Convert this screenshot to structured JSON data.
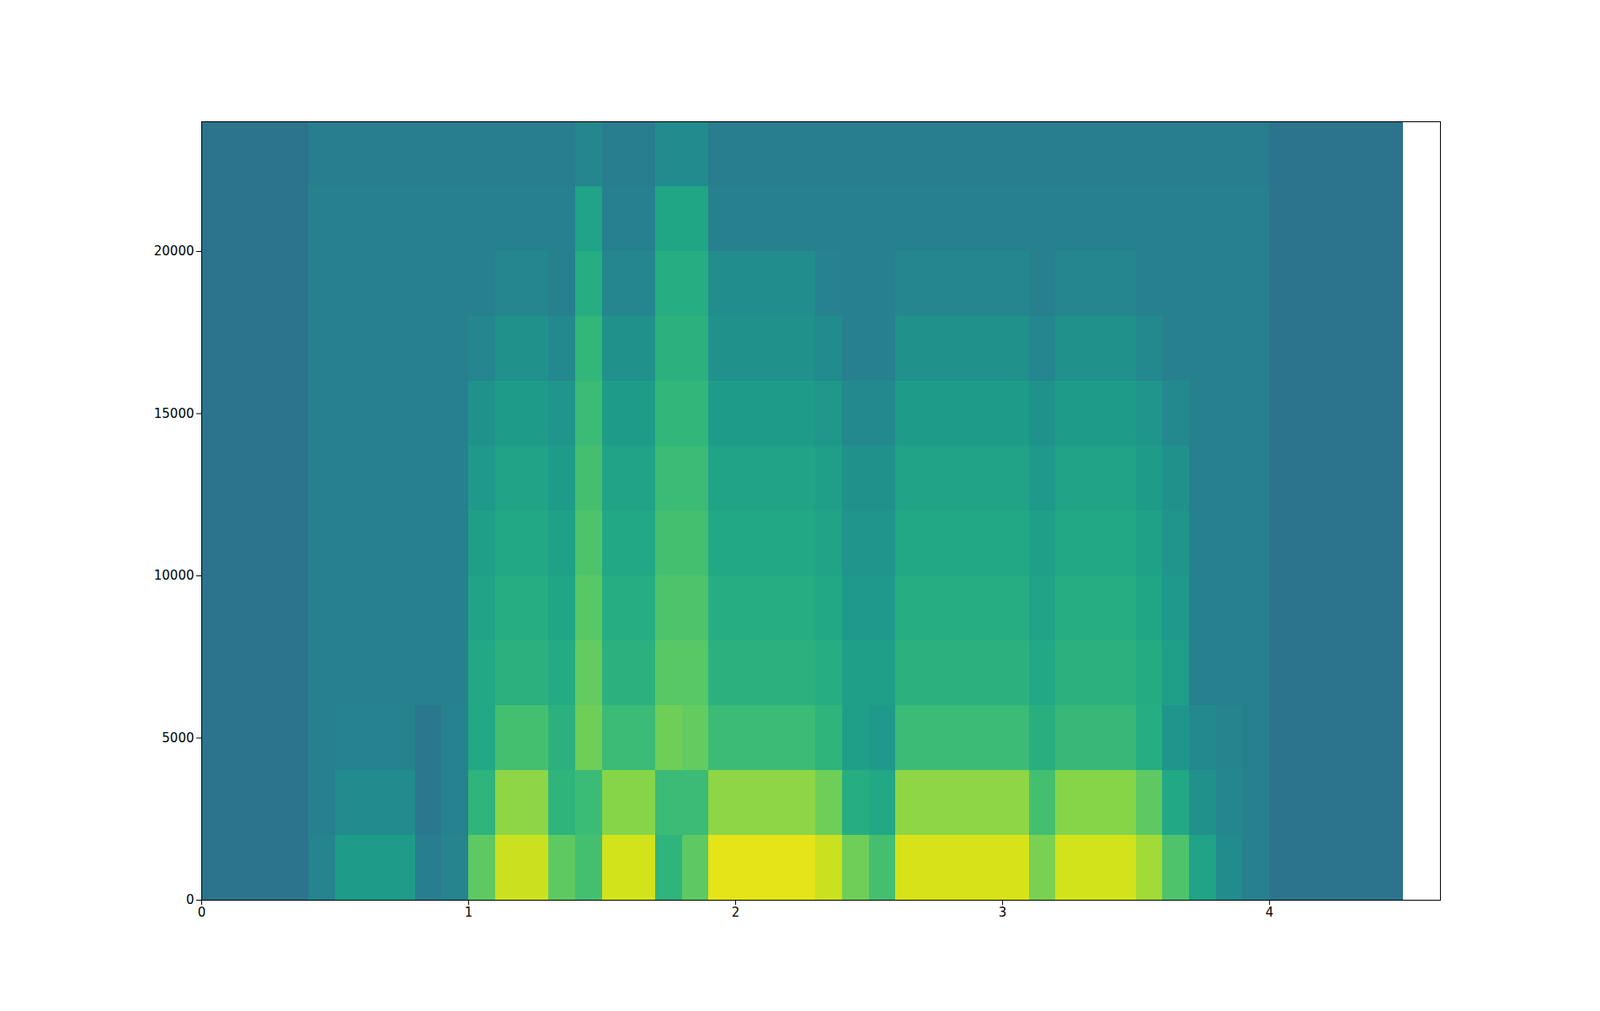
{
  "chart_data": {
    "type": "heatmap",
    "color": "viridis",
    "color_range": [
      0,
      10
    ],
    "xlim": [
      0,
      4.64
    ],
    "xticks": [
      0,
      1,
      2,
      3,
      4
    ],
    "ylim": [
      0,
      24000
    ],
    "yticks": [
      0,
      5000,
      10000,
      15000,
      20000
    ],
    "x_bins": [
      0,
      0.1,
      0.2,
      0.3,
      0.4,
      0.5,
      0.6,
      0.7,
      0.8,
      0.9,
      1.0,
      1.1,
      1.2,
      1.3,
      1.4,
      1.5,
      1.6,
      1.7,
      1.8,
      1.9,
      2.0,
      2.1,
      2.2,
      2.3,
      2.4,
      2.5,
      2.6,
      2.7,
      2.8,
      2.9,
      3.0,
      3.1,
      3.2,
      3.3,
      3.4,
      3.5,
      3.6,
      3.7,
      3.8,
      3.9,
      4.0,
      4.1,
      4.2,
      4.3,
      4.4,
      4.5,
      4.6,
      4.64
    ],
    "y_bins": [
      0,
      2000,
      4000,
      6000,
      8000,
      10000,
      12000,
      14000,
      16000,
      18000,
      20000,
      22000,
      24000
    ],
    "cells": [
      [
        3.8,
        3.8,
        3.8,
        3.8,
        4.5,
        5.5,
        5.5,
        5.5,
        4.2,
        4.5,
        7.5,
        9.2,
        9.2,
        7.5,
        7.0,
        9.3,
        9.3,
        6.5,
        7.5,
        9.6,
        9.6,
        9.6,
        9.6,
        9.2,
        7.8,
        7.0,
        9.4,
        9.4,
        9.4,
        9.4,
        9.4,
        8.0,
        9.3,
        9.3,
        9.3,
        8.6,
        7.2,
        5.8,
        4.8,
        4.3,
        3.8,
        3.8,
        3.8,
        3.8,
        3.8,
        null,
        null
      ],
      [
        3.8,
        3.8,
        3.8,
        3.8,
        4.3,
        4.8,
        4.8,
        4.8,
        4.0,
        4.4,
        6.5,
        8.3,
        8.3,
        6.5,
        6.8,
        8.2,
        8.2,
        6.8,
        6.8,
        8.3,
        8.3,
        8.3,
        8.3,
        7.8,
        6.2,
        6.0,
        8.3,
        8.3,
        8.3,
        8.3,
        8.3,
        7.0,
        8.2,
        8.2,
        8.2,
        7.5,
        6.0,
        5.0,
        4.6,
        4.3,
        3.8,
        3.8,
        3.8,
        3.8,
        3.8,
        null,
        null
      ],
      [
        3.8,
        3.8,
        3.8,
        3.8,
        4.3,
        4.4,
        4.4,
        4.4,
        4.0,
        4.4,
        6.0,
        7.0,
        7.0,
        6.4,
        7.8,
        6.8,
        6.8,
        7.8,
        7.6,
        6.8,
        6.8,
        6.8,
        6.8,
        6.5,
        5.6,
        5.4,
        6.8,
        6.8,
        6.8,
        6.8,
        6.8,
        6.3,
        6.7,
        6.7,
        6.7,
        6.2,
        5.2,
        4.7,
        4.5,
        4.3,
        3.8,
        3.8,
        3.8,
        3.8,
        3.8,
        null,
        null
      ],
      [
        3.8,
        3.8,
        3.8,
        3.8,
        4.3,
        4.3,
        4.3,
        4.3,
        4.3,
        4.3,
        6.0,
        6.4,
        6.4,
        6.1,
        7.6,
        6.4,
        6.4,
        7.4,
        7.4,
        6.4,
        6.4,
        6.4,
        6.4,
        6.2,
        5.6,
        5.6,
        6.4,
        6.4,
        6.4,
        6.4,
        6.4,
        6.0,
        6.4,
        6.4,
        6.4,
        6.1,
        5.6,
        4.3,
        4.3,
        4.3,
        3.8,
        3.8,
        3.8,
        3.8,
        3.8,
        null,
        null
      ],
      [
        3.8,
        3.8,
        3.8,
        3.8,
        4.3,
        4.3,
        4.3,
        4.3,
        4.3,
        4.3,
        5.8,
        6.2,
        6.2,
        5.9,
        7.4,
        6.2,
        6.2,
        7.2,
        7.2,
        6.2,
        6.2,
        6.2,
        6.2,
        6.0,
        5.4,
        5.4,
        6.2,
        6.2,
        6.2,
        6.2,
        6.2,
        5.8,
        6.2,
        6.2,
        6.2,
        5.9,
        5.4,
        4.3,
        4.3,
        4.3,
        3.8,
        3.8,
        3.8,
        3.8,
        3.8,
        null,
        null
      ],
      [
        3.8,
        3.8,
        3.8,
        3.8,
        4.3,
        4.3,
        4.3,
        4.3,
        4.3,
        4.3,
        5.6,
        6.0,
        6.0,
        5.7,
        7.2,
        6.0,
        6.0,
        7.0,
        7.0,
        6.0,
        6.0,
        6.0,
        6.0,
        5.8,
        5.2,
        5.2,
        6.0,
        6.0,
        6.0,
        6.0,
        6.0,
        5.6,
        6.0,
        6.0,
        6.0,
        5.7,
        5.2,
        4.3,
        4.3,
        4.3,
        3.8,
        3.8,
        3.8,
        3.8,
        3.8,
        null,
        null
      ],
      [
        3.8,
        3.8,
        3.8,
        3.8,
        4.3,
        4.3,
        4.3,
        4.3,
        4.3,
        4.3,
        5.4,
        5.8,
        5.8,
        5.5,
        7.0,
        5.8,
        5.8,
        6.8,
        6.8,
        5.8,
        5.8,
        5.8,
        5.8,
        5.6,
        5.0,
        5.0,
        5.8,
        5.8,
        5.8,
        5.8,
        5.8,
        5.4,
        5.8,
        5.8,
        5.8,
        5.5,
        5.0,
        4.3,
        4.3,
        4.3,
        3.8,
        3.8,
        3.8,
        3.8,
        3.8,
        null,
        null
      ],
      [
        3.8,
        3.8,
        3.8,
        3.8,
        4.3,
        4.3,
        4.3,
        4.3,
        4.3,
        4.3,
        5.1,
        5.5,
        5.5,
        5.2,
        6.8,
        5.5,
        5.5,
        6.6,
        6.6,
        5.5,
        5.5,
        5.5,
        5.5,
        5.3,
        4.7,
        4.7,
        5.5,
        5.5,
        5.5,
        5.5,
        5.5,
        5.1,
        5.5,
        5.5,
        5.5,
        5.2,
        4.7,
        4.3,
        4.3,
        4.3,
        3.8,
        3.8,
        3.8,
        3.8,
        3.8,
        null,
        null
      ],
      [
        3.8,
        3.8,
        3.8,
        3.8,
        4.3,
        4.3,
        4.3,
        4.3,
        4.3,
        4.3,
        4.6,
        5.0,
        5.0,
        4.7,
        6.6,
        5.0,
        5.0,
        6.4,
        6.4,
        5.0,
        5.0,
        5.0,
        5.0,
        4.8,
        4.3,
        4.3,
        5.0,
        5.0,
        5.0,
        5.0,
        5.0,
        4.6,
        5.0,
        5.0,
        5.0,
        4.7,
        4.3,
        4.3,
        4.3,
        4.3,
        3.8,
        3.8,
        3.8,
        3.8,
        3.8,
        null,
        null
      ],
      [
        3.8,
        3.8,
        3.8,
        3.8,
        4.3,
        4.3,
        4.3,
        4.3,
        4.3,
        4.3,
        4.3,
        4.6,
        4.6,
        4.3,
        6.2,
        4.6,
        4.6,
        6.2,
        6.2,
        4.9,
        4.9,
        4.9,
        4.9,
        4.4,
        4.3,
        4.3,
        4.6,
        4.6,
        4.6,
        4.6,
        4.6,
        4.3,
        4.6,
        4.6,
        4.6,
        4.3,
        4.3,
        4.3,
        4.3,
        4.3,
        3.8,
        3.8,
        3.8,
        3.8,
        3.8,
        null,
        null
      ],
      [
        3.8,
        3.8,
        3.8,
        3.8,
        4.3,
        4.3,
        4.3,
        4.3,
        4.3,
        4.3,
        4.3,
        4.3,
        4.3,
        4.3,
        5.8,
        4.3,
        4.3,
        5.9,
        5.9,
        4.3,
        4.3,
        4.3,
        4.3,
        4.3,
        4.3,
        4.3,
        4.3,
        4.3,
        4.3,
        4.3,
        4.3,
        4.3,
        4.3,
        4.3,
        4.3,
        4.3,
        4.3,
        4.3,
        4.3,
        4.3,
        3.8,
        3.8,
        3.8,
        3.8,
        3.8,
        null,
        null
      ],
      [
        3.8,
        3.8,
        3.8,
        3.8,
        4.2,
        4.2,
        4.2,
        4.2,
        4.2,
        4.2,
        4.2,
        4.2,
        4.2,
        4.2,
        4.6,
        4.2,
        4.2,
        4.8,
        4.8,
        4.2,
        4.2,
        4.2,
        4.2,
        4.2,
        4.2,
        4.2,
        4.2,
        4.2,
        4.2,
        4.2,
        4.2,
        4.2,
        4.2,
        4.2,
        4.2,
        4.2,
        4.2,
        4.2,
        4.2,
        4.2,
        3.8,
        3.8,
        3.8,
        3.8,
        3.8,
        null,
        null
      ]
    ]
  }
}
